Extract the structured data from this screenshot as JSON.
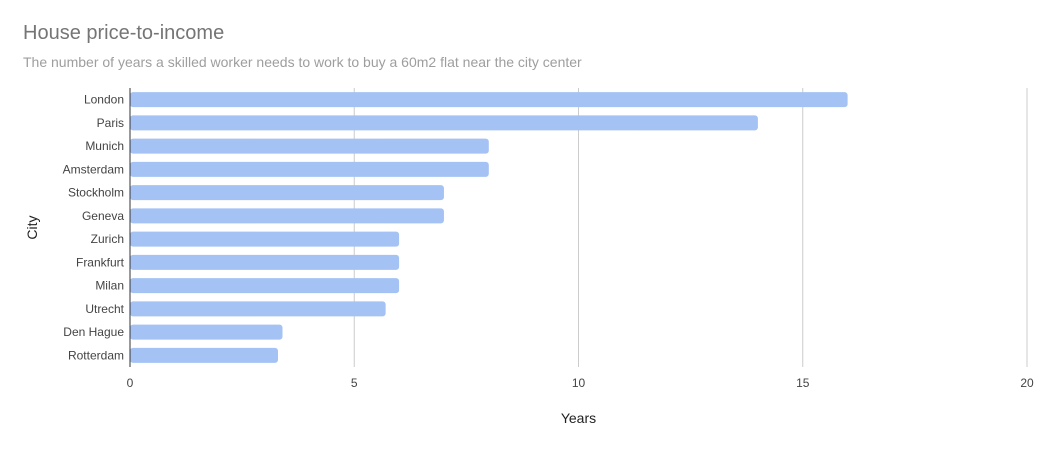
{
  "chart_data": {
    "type": "bar",
    "orientation": "horizontal",
    "title": "House price-to-income",
    "subtitle": "The number of years a skilled worker needs to work to buy a 60m2 flat near the city center",
    "xlabel": "Years",
    "ylabel": "City",
    "xlim": [
      0,
      20
    ],
    "xticks": [
      "0",
      "5",
      "10",
      "15",
      "20"
    ],
    "grid": true,
    "legend": "none",
    "bar_color": "#a4c2f4",
    "categories": [
      "London",
      "Paris",
      "Munich",
      "Amsterdam",
      "Stockholm",
      "Geneva",
      "Zurich",
      "Frankfurt",
      "Milan",
      "Utrecht",
      "Den Hague",
      "Rotterdam"
    ],
    "values": [
      16,
      14,
      8,
      8,
      7,
      7,
      6,
      6,
      6,
      5.7,
      3.4,
      3.3
    ]
  }
}
